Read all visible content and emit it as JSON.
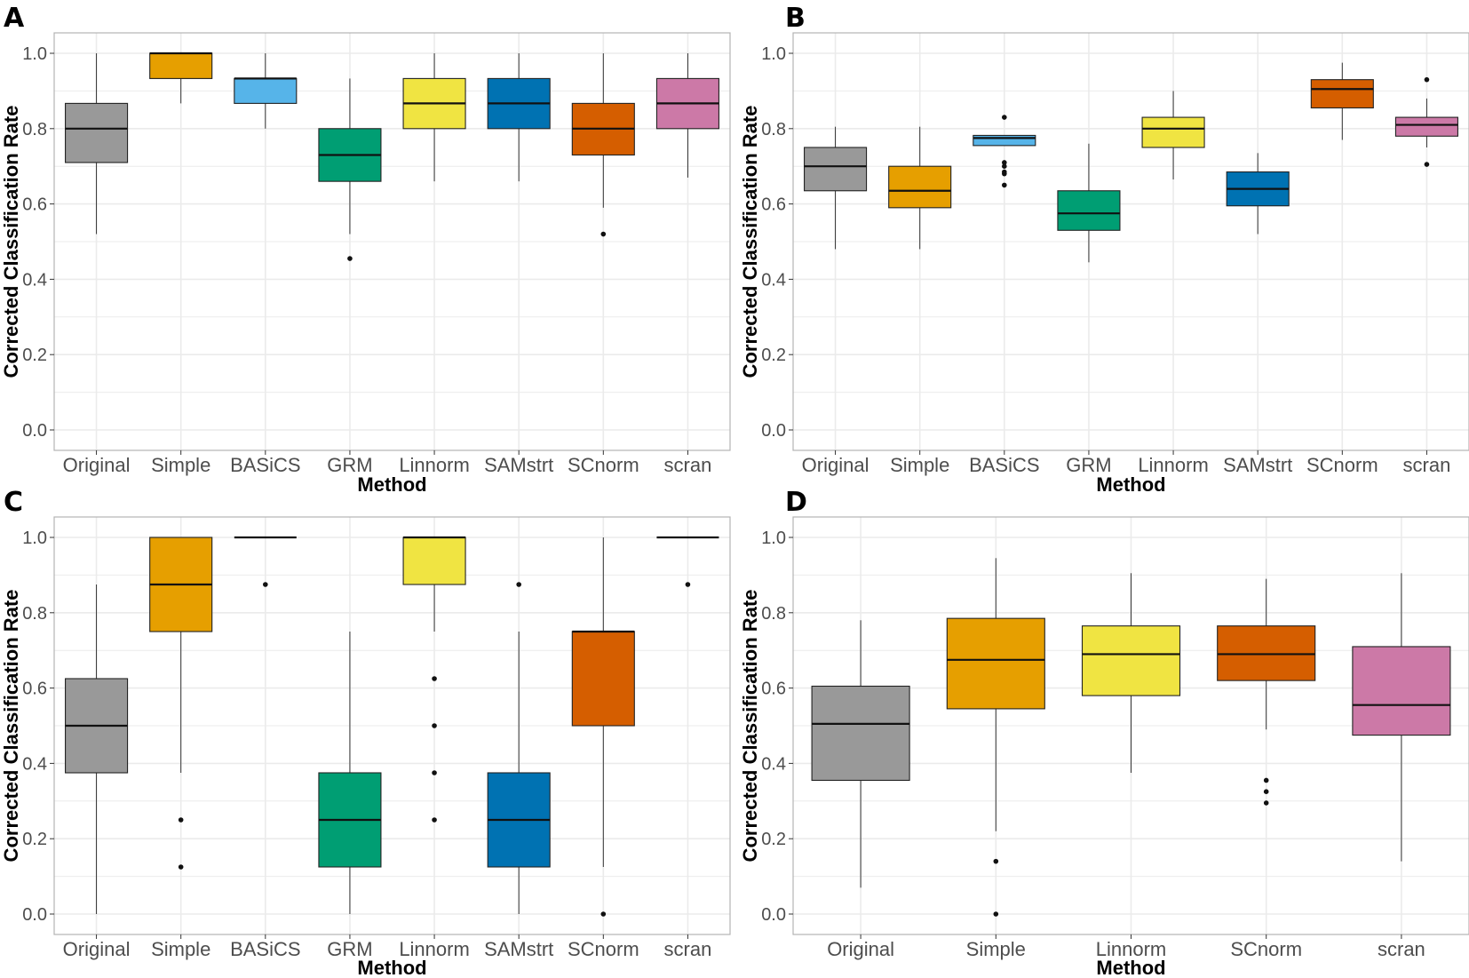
{
  "figure": {
    "panel_letters": [
      "A",
      "B",
      "C",
      "D"
    ]
  },
  "colors": {
    "Original": "#999999",
    "Simple": "#E69F00",
    "BASiCS": "#56B4E9",
    "GRM": "#009E73",
    "Linnorm": "#F0E442",
    "SAMstrt": "#0072B2",
    "SCnorm": "#D55E00",
    "scran": "#CC79A7",
    "grid": "#ebebeb",
    "panel_border": "#b3b3b3"
  },
  "chart_data": [
    {
      "panel": "A",
      "type": "box",
      "xlabel": "Method",
      "ylabel": "Corrected Classification Rate",
      "ylim": [
        0.0,
        1.0
      ],
      "yticks": [
        "0.0",
        "0.2",
        "0.4",
        "0.6",
        "0.8",
        "1.0"
      ],
      "categories": [
        "Original",
        "Simple",
        "BASiCS",
        "GRM",
        "Linnorm",
        "SAMstrt",
        "SCnorm",
        "scran"
      ],
      "boxes": [
        {
          "min": 0.52,
          "q1": 0.71,
          "median": 0.8,
          "q3": 0.867,
          "max": 1.0,
          "outliers": []
        },
        {
          "min": 0.867,
          "q1": 0.933,
          "median": 1.0,
          "q3": 1.0,
          "max": 1.0,
          "outliers": []
        },
        {
          "min": 0.8,
          "q1": 0.867,
          "median": 0.933,
          "q3": 0.933,
          "max": 1.0,
          "outliers": []
        },
        {
          "min": 0.52,
          "q1": 0.66,
          "median": 0.73,
          "q3": 0.8,
          "max": 0.933,
          "outliers": [
            0.455
          ]
        },
        {
          "min": 0.66,
          "q1": 0.8,
          "median": 0.867,
          "q3": 0.933,
          "max": 1.0,
          "outliers": []
        },
        {
          "min": 0.66,
          "q1": 0.8,
          "median": 0.867,
          "q3": 0.933,
          "max": 1.0,
          "outliers": []
        },
        {
          "min": 0.59,
          "q1": 0.73,
          "median": 0.8,
          "q3": 0.867,
          "max": 1.0,
          "outliers": [
            0.52
          ]
        },
        {
          "min": 0.67,
          "q1": 0.8,
          "median": 0.867,
          "q3": 0.933,
          "max": 1.0,
          "outliers": []
        }
      ]
    },
    {
      "panel": "B",
      "type": "box",
      "xlabel": "Method",
      "ylabel": "Corrected Classification Rate",
      "ylim": [
        0.0,
        1.0
      ],
      "yticks": [
        "0.0",
        "0.2",
        "0.4",
        "0.6",
        "0.8",
        "1.0"
      ],
      "categories": [
        "Original",
        "Simple",
        "BASiCS",
        "GRM",
        "Linnorm",
        "SAMstrt",
        "SCnorm",
        "scran"
      ],
      "boxes": [
        {
          "min": 0.48,
          "q1": 0.635,
          "median": 0.7,
          "q3": 0.75,
          "max": 0.805,
          "outliers": []
        },
        {
          "min": 0.48,
          "q1": 0.59,
          "median": 0.635,
          "q3": 0.7,
          "max": 0.805,
          "outliers": []
        },
        {
          "min": 0.755,
          "q1": 0.755,
          "median": 0.775,
          "q3": 0.782,
          "max": 0.782,
          "outliers": [
            0.83,
            0.71,
            0.7,
            0.685,
            0.68,
            0.65
          ]
        },
        {
          "min": 0.445,
          "q1": 0.53,
          "median": 0.575,
          "q3": 0.635,
          "max": 0.76,
          "outliers": []
        },
        {
          "min": 0.665,
          "q1": 0.75,
          "median": 0.8,
          "q3": 0.83,
          "max": 0.9,
          "outliers": []
        },
        {
          "min": 0.52,
          "q1": 0.595,
          "median": 0.64,
          "q3": 0.685,
          "max": 0.735,
          "outliers": []
        },
        {
          "min": 0.77,
          "q1": 0.855,
          "median": 0.905,
          "q3": 0.93,
          "max": 0.975,
          "outliers": []
        },
        {
          "min": 0.75,
          "q1": 0.78,
          "median": 0.81,
          "q3": 0.83,
          "max": 0.88,
          "outliers": [
            0.93,
            0.705
          ]
        }
      ]
    },
    {
      "panel": "C",
      "type": "box",
      "xlabel": "Method",
      "ylabel": "Corrected Classification Rate",
      "ylim": [
        0.0,
        1.0
      ],
      "yticks": [
        "0.0",
        "0.2",
        "0.4",
        "0.6",
        "0.8",
        "1.0"
      ],
      "categories": [
        "Original",
        "Simple",
        "BASiCS",
        "GRM",
        "Linnorm",
        "SAMstrt",
        "SCnorm",
        "scran"
      ],
      "boxes": [
        {
          "min": 0.0,
          "q1": 0.375,
          "median": 0.5,
          "q3": 0.625,
          "max": 0.875,
          "outliers": []
        },
        {
          "min": 0.375,
          "q1": 0.75,
          "median": 0.875,
          "q3": 1.0,
          "max": 1.0,
          "outliers": [
            0.25,
            0.125
          ]
        },
        {
          "min": 1.0,
          "q1": 1.0,
          "median": 1.0,
          "q3": 1.0,
          "max": 1.0,
          "outliers": [
            0.875
          ]
        },
        {
          "min": 0.0,
          "q1": 0.125,
          "median": 0.25,
          "q3": 0.375,
          "max": 0.75,
          "outliers": []
        },
        {
          "min": 0.75,
          "q1": 0.875,
          "median": 1.0,
          "q3": 1.0,
          "max": 1.0,
          "outliers": [
            0.625,
            0.5,
            0.375,
            0.25
          ]
        },
        {
          "min": 0.0,
          "q1": 0.125,
          "median": 0.25,
          "q3": 0.375,
          "max": 0.75,
          "outliers": [
            0.875
          ]
        },
        {
          "min": 0.125,
          "q1": 0.5,
          "median": 0.75,
          "q3": 0.75,
          "max": 1.0,
          "outliers": [
            0.0
          ]
        },
        {
          "min": 1.0,
          "q1": 1.0,
          "median": 1.0,
          "q3": 1.0,
          "max": 1.0,
          "outliers": [
            0.875
          ]
        }
      ]
    },
    {
      "panel": "D",
      "type": "box",
      "xlabel": "Method",
      "ylabel": "Corrected Classification Rate",
      "ylim": [
        0.0,
        1.0
      ],
      "yticks": [
        "0.0",
        "0.2",
        "0.4",
        "0.6",
        "0.8",
        "1.0"
      ],
      "categories": [
        "Original",
        "Simple",
        "Linnorm",
        "SCnorm",
        "scran"
      ],
      "boxes": [
        {
          "min": 0.07,
          "q1": 0.355,
          "median": 0.505,
          "q3": 0.605,
          "max": 0.78,
          "outliers": []
        },
        {
          "min": 0.22,
          "q1": 0.545,
          "median": 0.675,
          "q3": 0.785,
          "max": 0.945,
          "outliers": [
            0.14,
            0.0
          ]
        },
        {
          "min": 0.375,
          "q1": 0.58,
          "median": 0.69,
          "q3": 0.765,
          "max": 0.905,
          "outliers": []
        },
        {
          "min": 0.49,
          "q1": 0.62,
          "median": 0.69,
          "q3": 0.765,
          "max": 0.89,
          "outliers": [
            0.355,
            0.325,
            0.295
          ]
        },
        {
          "min": 0.14,
          "q1": 0.475,
          "median": 0.555,
          "q3": 0.71,
          "max": 0.905,
          "outliers": []
        }
      ]
    }
  ]
}
